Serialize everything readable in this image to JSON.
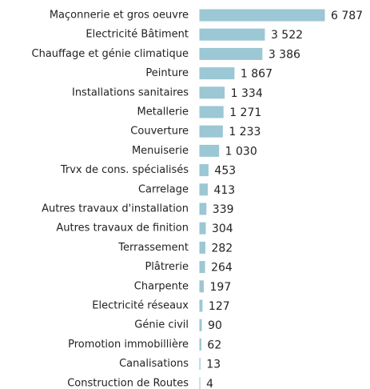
{
  "chart_data": {
    "type": "bar",
    "orientation": "horizontal",
    "color": "#9cc7d4",
    "categories": [
      "Maçonnerie et gros oeuvre",
      "Electricité Bâtiment",
      "Chauffage et génie climatique",
      "Peinture",
      "Installations sanitaires",
      "Metallerie",
      "Couverture",
      "Menuiserie",
      "Trvx de cons. spécialisés",
      "Carrelage",
      "Autres travaux d'installation",
      "Autres travaux de finition",
      "Terrassement",
      "Plâtrerie",
      "Charpente",
      "Electricité réseaux",
      "Génie civil",
      "Promotion immobillière",
      "Canalisations",
      "Construction de Routes"
    ],
    "values": [
      6787,
      3522,
      3386,
      1867,
      1334,
      1271,
      1233,
      1030,
      453,
      413,
      339,
      304,
      282,
      264,
      197,
      127,
      90,
      62,
      13,
      4
    ],
    "value_labels": [
      "6 787",
      "3 522",
      "3 386",
      "1 867",
      "1 334",
      "1 271",
      "1 233",
      "1 030",
      "453",
      "413",
      "339",
      "304",
      "282",
      "264",
      "197",
      "127",
      "90",
      "62",
      "13",
      "4"
    ]
  }
}
